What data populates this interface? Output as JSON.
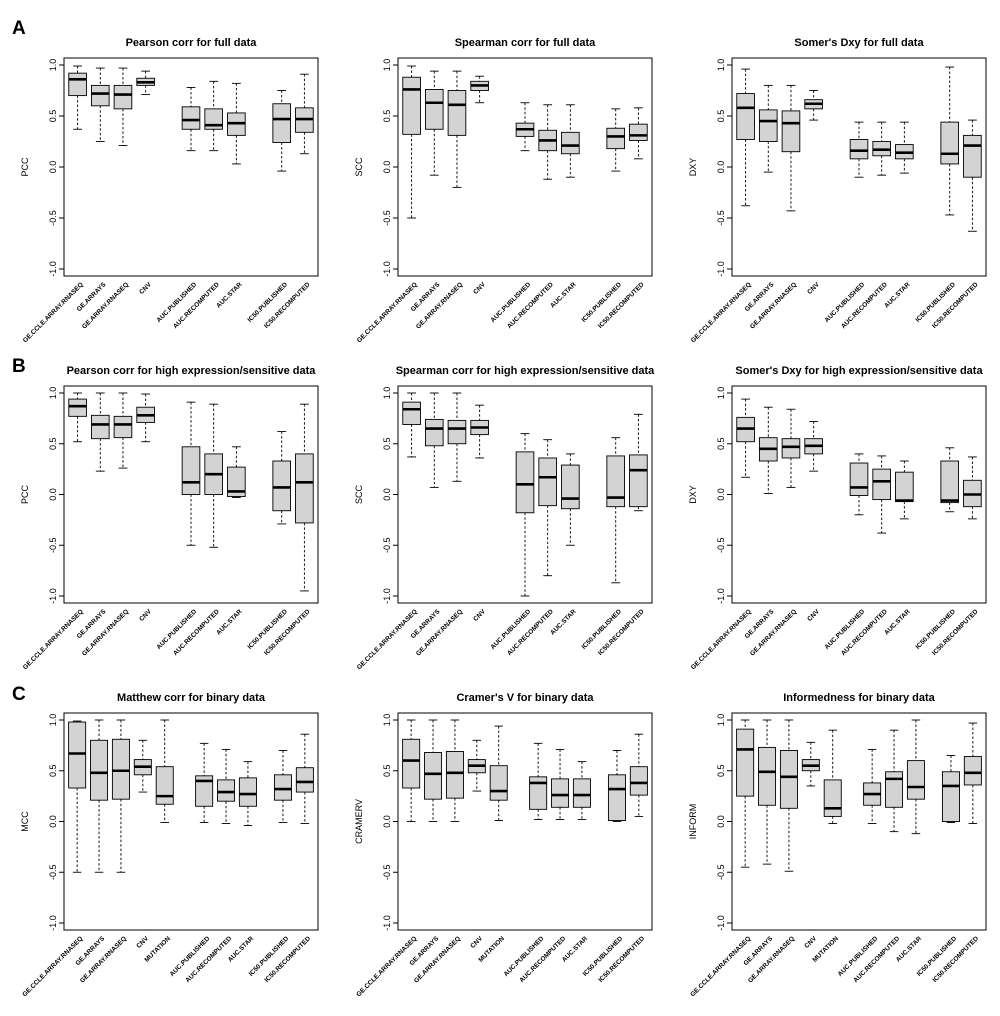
{
  "panel_letters": [
    "A",
    "B",
    "C"
  ],
  "chart_data": [
    {
      "type": "box",
      "panel": "A",
      "title": "Pearson corr for full data",
      "ylabel": "PCC",
      "ylim": [
        -1,
        1
      ],
      "yticks": [
        -1.0,
        -0.5,
        0.0,
        0.5,
        1.0
      ],
      "grid": false,
      "legend": "none",
      "categories": [
        "GE.CCLE.ARRAY.RNASEQ",
        "GE.ARRAYS",
        "GE.ARRAY.RNASEQ",
        "CNV",
        "AUC.PUBLISHED",
        "AUC.RECOMPUTED",
        "AUC.STAR",
        "IC50.PUBLISHED",
        "IC50.RECOMPUTED"
      ],
      "positions": [
        1,
        2,
        3,
        4,
        6,
        7,
        8,
        10,
        11
      ],
      "boxes": [
        {
          "min": 0.37,
          "q1": 0.7,
          "median": 0.86,
          "q3": 0.92,
          "max": 0.99
        },
        {
          "min": 0.25,
          "q1": 0.6,
          "median": 0.72,
          "q3": 0.8,
          "max": 0.97
        },
        {
          "min": 0.21,
          "q1": 0.57,
          "median": 0.71,
          "q3": 0.8,
          "max": 0.97
        },
        {
          "min": 0.71,
          "q1": 0.8,
          "median": 0.83,
          "q3": 0.87,
          "max": 0.94
        },
        {
          "min": 0.16,
          "q1": 0.37,
          "median": 0.46,
          "q3": 0.59,
          "max": 0.78
        },
        {
          "min": 0.16,
          "q1": 0.37,
          "median": 0.41,
          "q3": 0.57,
          "max": 0.84
        },
        {
          "min": 0.03,
          "q1": 0.31,
          "median": 0.43,
          "q3": 0.53,
          "max": 0.82
        },
        {
          "min": -0.04,
          "q1": 0.24,
          "median": 0.47,
          "q3": 0.62,
          "max": 0.75
        },
        {
          "min": 0.13,
          "q1": 0.34,
          "median": 0.47,
          "q3": 0.58,
          "max": 0.91
        }
      ]
    },
    {
      "type": "box",
      "panel": "A",
      "title": "Spearman corr for full data",
      "ylabel": "SCC",
      "ylim": [
        -1,
        1
      ],
      "yticks": [
        -1.0,
        -0.5,
        0.0,
        0.5,
        1.0
      ],
      "grid": false,
      "legend": "none",
      "categories": [
        "GE.CCLE.ARRAY.RNASEQ",
        "GE.ARRAYS",
        "GE.ARRAY.RNASEQ",
        "CNV",
        "AUC.PUBLISHED",
        "AUC.RECOMPUTED",
        "AUC.STAR",
        "IC50.PUBLISHED",
        "IC50.RECOMPUTED"
      ],
      "positions": [
        1,
        2,
        3,
        4,
        6,
        7,
        8,
        10,
        11
      ],
      "boxes": [
        {
          "min": -0.5,
          "q1": 0.32,
          "median": 0.76,
          "q3": 0.88,
          "max": 0.99
        },
        {
          "min": -0.08,
          "q1": 0.37,
          "median": 0.63,
          "q3": 0.76,
          "max": 0.94
        },
        {
          "min": -0.2,
          "q1": 0.31,
          "median": 0.61,
          "q3": 0.75,
          "max": 0.94
        },
        {
          "min": 0.63,
          "q1": 0.75,
          "median": 0.8,
          "q3": 0.84,
          "max": 0.89
        },
        {
          "min": 0.16,
          "q1": 0.3,
          "median": 0.37,
          "q3": 0.43,
          "max": 0.63
        },
        {
          "min": -0.12,
          "q1": 0.16,
          "median": 0.26,
          "q3": 0.36,
          "max": 0.61
        },
        {
          "min": -0.1,
          "q1": 0.13,
          "median": 0.21,
          "q3": 0.34,
          "max": 0.61
        },
        {
          "min": -0.04,
          "q1": 0.18,
          "median": 0.3,
          "q3": 0.38,
          "max": 0.57
        },
        {
          "min": 0.08,
          "q1": 0.26,
          "median": 0.31,
          "q3": 0.42,
          "max": 0.58
        }
      ]
    },
    {
      "type": "box",
      "panel": "A",
      "title": "Somer's Dxy for full data",
      "ylabel": "DXY",
      "ylim": [
        -1,
        1
      ],
      "yticks": [
        -1.0,
        -0.5,
        0.0,
        0.5,
        1.0
      ],
      "grid": false,
      "legend": "none",
      "categories": [
        "GE.CCLE.ARRAY.RNASEQ",
        "GE.ARRAYS",
        "GE.ARRAY.RNASEQ",
        "CNV",
        "AUC.PUBLISHED",
        "AUC.RECOMPUTED",
        "AUC.STAR",
        "IC50.PUBLISHED",
        "IC50.RECOMPUTED"
      ],
      "positions": [
        1,
        2,
        3,
        4,
        6,
        7,
        8,
        10,
        11
      ],
      "boxes": [
        {
          "min": -0.38,
          "q1": 0.27,
          "median": 0.58,
          "q3": 0.72,
          "max": 0.96
        },
        {
          "min": -0.05,
          "q1": 0.25,
          "median": 0.45,
          "q3": 0.56,
          "max": 0.8
        },
        {
          "min": -0.43,
          "q1": 0.15,
          "median": 0.43,
          "q3": 0.55,
          "max": 0.8
        },
        {
          "min": 0.46,
          "q1": 0.57,
          "median": 0.62,
          "q3": 0.66,
          "max": 0.75
        },
        {
          "min": -0.1,
          "q1": 0.08,
          "median": 0.16,
          "q3": 0.27,
          "max": 0.44
        },
        {
          "min": -0.08,
          "q1": 0.11,
          "median": 0.17,
          "q3": 0.25,
          "max": 0.44
        },
        {
          "min": -0.06,
          "q1": 0.08,
          "median": 0.14,
          "q3": 0.22,
          "max": 0.44
        },
        {
          "min": -0.47,
          "q1": 0.03,
          "median": 0.13,
          "q3": 0.44,
          "max": 0.98
        },
        {
          "min": -0.63,
          "q1": -0.1,
          "median": 0.21,
          "q3": 0.31,
          "max": 0.46
        }
      ]
    },
    {
      "type": "box",
      "panel": "B",
      "title": "Pearson corr for high expression/sensitive data",
      "ylabel": "PCC",
      "ylim": [
        -1,
        1
      ],
      "yticks": [
        -1.0,
        -0.5,
        0.0,
        0.5,
        1.0
      ],
      "grid": false,
      "legend": "none",
      "categories": [
        "GE.CCLE.ARRAY.RNASEQ",
        "GE.ARRAYS",
        "GE.ARRAY.RNASEQ",
        "CNV",
        "AUC.PUBLISHED",
        "AUC.RECOMPUTED",
        "AUC.STAR",
        "IC50.PUBLISHED",
        "IC50.RECOMPUTED"
      ],
      "positions": [
        1,
        2,
        3,
        4,
        6,
        7,
        8,
        10,
        11
      ],
      "boxes": [
        {
          "min": 0.52,
          "q1": 0.77,
          "median": 0.87,
          "q3": 0.94,
          "max": 1.0
        },
        {
          "min": 0.23,
          "q1": 0.55,
          "median": 0.69,
          "q3": 0.78,
          "max": 1.0
        },
        {
          "min": 0.26,
          "q1": 0.56,
          "median": 0.69,
          "q3": 0.77,
          "max": 1.0
        },
        {
          "min": 0.52,
          "q1": 0.71,
          "median": 0.78,
          "q3": 0.86,
          "max": 0.99
        },
        {
          "min": -0.5,
          "q1": 0.0,
          "median": 0.12,
          "q3": 0.47,
          "max": 0.91
        },
        {
          "min": -0.52,
          "q1": 0.0,
          "median": 0.2,
          "q3": 0.4,
          "max": 0.89
        },
        {
          "min": -0.03,
          "q1": -0.02,
          "median": 0.03,
          "q3": 0.27,
          "max": 0.47
        },
        {
          "min": -0.29,
          "q1": -0.16,
          "median": 0.07,
          "q3": 0.33,
          "max": 0.62
        },
        {
          "min": -0.95,
          "q1": -0.28,
          "median": 0.12,
          "q3": 0.4,
          "max": 0.89
        }
      ]
    },
    {
      "type": "box",
      "panel": "B",
      "title": "Spearman corr for high expression/sensitive data",
      "ylabel": "SCC",
      "ylim": [
        -1,
        1
      ],
      "yticks": [
        -1.0,
        -0.5,
        0.0,
        0.5,
        1.0
      ],
      "grid": false,
      "legend": "none",
      "categories": [
        "GE.CCLE.ARRAY.RNASEQ",
        "GE.ARRAYS",
        "GE.ARRAY.RNASEQ",
        "CNV",
        "AUC.PUBLISHED",
        "AUC.RECOMPUTED",
        "AUC.STAR",
        "IC50.PUBLISHED",
        "IC50.RECOMPUTED"
      ],
      "positions": [
        1,
        2,
        3,
        4,
        6,
        7,
        8,
        10,
        11
      ],
      "boxes": [
        {
          "min": 0.37,
          "q1": 0.69,
          "median": 0.84,
          "q3": 0.91,
          "max": 1.0
        },
        {
          "min": 0.07,
          "q1": 0.48,
          "median": 0.65,
          "q3": 0.74,
          "max": 1.0
        },
        {
          "min": 0.13,
          "q1": 0.5,
          "median": 0.65,
          "q3": 0.73,
          "max": 1.0
        },
        {
          "min": 0.36,
          "q1": 0.59,
          "median": 0.66,
          "q3": 0.73,
          "max": 0.88
        },
        {
          "min": -1.0,
          "q1": -0.18,
          "median": 0.1,
          "q3": 0.42,
          "max": 0.6
        },
        {
          "min": -0.8,
          "q1": -0.11,
          "median": 0.17,
          "q3": 0.36,
          "max": 0.54
        },
        {
          "min": -0.5,
          "q1": -0.14,
          "median": -0.04,
          "q3": 0.29,
          "max": 0.4
        },
        {
          "min": -0.87,
          "q1": -0.12,
          "median": -0.03,
          "q3": 0.38,
          "max": 0.56
        },
        {
          "min": -0.16,
          "q1": -0.12,
          "median": 0.24,
          "q3": 0.39,
          "max": 0.79
        }
      ]
    },
    {
      "type": "box",
      "panel": "B",
      "title": "Somer's Dxy for high expression/sensitive data",
      "ylabel": "DXY",
      "ylim": [
        -1,
        1
      ],
      "yticks": [
        -1.0,
        -0.5,
        0.0,
        0.5,
        1.0
      ],
      "grid": false,
      "legend": "none",
      "categories": [
        "GE.CCLE.ARRAY.RNASEQ",
        "GE.ARRAYS",
        "GE.ARRAY.RNASEQ",
        "CNV",
        "AUC.PUBLISHED",
        "AUC.RECOMPUTED",
        "AUC.STAR",
        "IC50.PUBLISHED",
        "IC50.RECOMPUTED"
      ],
      "positions": [
        1,
        2,
        3,
        4,
        6,
        7,
        8,
        10,
        11
      ],
      "boxes": [
        {
          "min": 0.17,
          "q1": 0.52,
          "median": 0.65,
          "q3": 0.76,
          "max": 0.94
        },
        {
          "min": 0.01,
          "q1": 0.33,
          "median": 0.45,
          "q3": 0.56,
          "max": 0.86
        },
        {
          "min": 0.07,
          "q1": 0.36,
          "median": 0.47,
          "q3": 0.55,
          "max": 0.84
        },
        {
          "min": 0.23,
          "q1": 0.4,
          "median": 0.48,
          "q3": 0.55,
          "max": 0.72
        },
        {
          "min": -0.2,
          "q1": -0.01,
          "median": 0.07,
          "q3": 0.31,
          "max": 0.4
        },
        {
          "min": -0.38,
          "q1": -0.05,
          "median": 0.13,
          "q3": 0.25,
          "max": 0.38
        },
        {
          "min": -0.24,
          "q1": -0.07,
          "median": -0.06,
          "q3": 0.22,
          "max": 0.33
        },
        {
          "min": -0.17,
          "q1": -0.08,
          "median": -0.06,
          "q3": 0.33,
          "max": 0.46
        },
        {
          "min": -0.24,
          "q1": -0.12,
          "median": 0.0,
          "q3": 0.14,
          "max": 0.37
        }
      ]
    },
    {
      "type": "box",
      "panel": "C",
      "title": "Matthew corr for binary data",
      "ylabel": "MCC",
      "ylim": [
        -1,
        1
      ],
      "yticks": [
        -1.0,
        -0.5,
        0.0,
        0.5,
        1.0
      ],
      "grid": false,
      "legend": "none",
      "categories": [
        "GE.CCLE.ARRAY.RNASEQ",
        "GE.ARRAYS",
        "GE.ARRAY.RNASEQ",
        "CNV",
        "MUTATION",
        "AUC.PUBLISHED",
        "AUC.RECOMPUTED",
        "AUC.STAR",
        "IC50.PUBLISHED",
        "IC50.RECOMPUTED"
      ],
      "positions": [
        1,
        2,
        3,
        4,
        5,
        6.8,
        7.8,
        8.8,
        10.4,
        11.4
      ],
      "boxes": [
        {
          "min": -0.5,
          "q1": 0.33,
          "median": 0.67,
          "q3": 0.98,
          "max": 0.99
        },
        {
          "min": -0.5,
          "q1": 0.21,
          "median": 0.48,
          "q3": 0.8,
          "max": 1.0
        },
        {
          "min": -0.5,
          "q1": 0.22,
          "median": 0.5,
          "q3": 0.81,
          "max": 1.0
        },
        {
          "min": 0.29,
          "q1": 0.46,
          "median": 0.54,
          "q3": 0.61,
          "max": 0.8
        },
        {
          "min": -0.01,
          "q1": 0.17,
          "median": 0.25,
          "q3": 0.54,
          "max": 1.0
        },
        {
          "min": -0.01,
          "q1": 0.15,
          "median": 0.4,
          "q3": 0.45,
          "max": 0.77
        },
        {
          "min": -0.02,
          "q1": 0.2,
          "median": 0.29,
          "q3": 0.41,
          "max": 0.71
        },
        {
          "min": -0.04,
          "q1": 0.15,
          "median": 0.27,
          "q3": 0.43,
          "max": 0.59
        },
        {
          "min": -0.01,
          "q1": 0.21,
          "median": 0.32,
          "q3": 0.46,
          "max": 0.7
        },
        {
          "min": -0.02,
          "q1": 0.29,
          "median": 0.39,
          "q3": 0.53,
          "max": 0.86
        }
      ]
    },
    {
      "type": "box",
      "panel": "C",
      "title": "Cramer's V for binary data",
      "ylabel": "CRAMERV",
      "ylim": [
        -1,
        1
      ],
      "yticks": [
        -1.0,
        -0.5,
        0.0,
        0.5,
        1.0
      ],
      "grid": false,
      "legend": "none",
      "categories": [
        "GE.CCLE.ARRAY.RNASEQ",
        "GE.ARRAYS",
        "GE.ARRAY.RNASEQ",
        "CNV",
        "MUTATION",
        "AUC.PUBLISHED",
        "AUC.RECOMPUTED",
        "AUC.STAR",
        "IC50.PUBLISHED",
        "IC50.RECOMPUTED"
      ],
      "positions": [
        1,
        2,
        3,
        4,
        5,
        6.8,
        7.8,
        8.8,
        10.4,
        11.4
      ],
      "boxes": [
        {
          "min": 0.0,
          "q1": 0.33,
          "median": 0.6,
          "q3": 0.81,
          "max": 1.0
        },
        {
          "min": 0.0,
          "q1": 0.22,
          "median": 0.47,
          "q3": 0.68,
          "max": 1.0
        },
        {
          "min": 0.0,
          "q1": 0.23,
          "median": 0.48,
          "q3": 0.69,
          "max": 1.0
        },
        {
          "min": 0.3,
          "q1": 0.48,
          "median": 0.55,
          "q3": 0.61,
          "max": 0.8
        },
        {
          "min": 0.01,
          "q1": 0.21,
          "median": 0.3,
          "q3": 0.55,
          "max": 0.94
        },
        {
          "min": 0.02,
          "q1": 0.12,
          "median": 0.38,
          "q3": 0.44,
          "max": 0.77
        },
        {
          "min": 0.02,
          "q1": 0.14,
          "median": 0.26,
          "q3": 0.42,
          "max": 0.71
        },
        {
          "min": 0.02,
          "q1": 0.14,
          "median": 0.26,
          "q3": 0.42,
          "max": 0.59
        },
        {
          "min": 0.0,
          "q1": 0.01,
          "median": 0.32,
          "q3": 0.46,
          "max": 0.7
        },
        {
          "min": 0.05,
          "q1": 0.26,
          "median": 0.38,
          "q3": 0.54,
          "max": 0.86
        }
      ]
    },
    {
      "type": "box",
      "panel": "C",
      "title": "Informedness for binary data",
      "ylabel": "INFORM",
      "ylim": [
        -1,
        1
      ],
      "yticks": [
        -1.0,
        -0.5,
        0.0,
        0.5,
        1.0
      ],
      "grid": false,
      "legend": "none",
      "categories": [
        "GE.CCLE.ARRAY.RNASEQ",
        "GE.ARRAYS",
        "GE.ARRAY.RNASEQ",
        "CNV",
        "MUTATION",
        "AUC.PUBLISHED",
        "AUC.RECOMPUTED",
        "AUC.STAR",
        "IC50.PUBLISHED",
        "IC50.RECOMPUTED"
      ],
      "positions": [
        1,
        2,
        3,
        4,
        5,
        6.8,
        7.8,
        8.8,
        10.4,
        11.4
      ],
      "boxes": [
        {
          "min": -0.45,
          "q1": 0.25,
          "median": 0.71,
          "q3": 0.91,
          "max": 1.0
        },
        {
          "min": -0.42,
          "q1": 0.16,
          "median": 0.49,
          "q3": 0.73,
          "max": 1.0
        },
        {
          "min": -0.49,
          "q1": 0.13,
          "median": 0.44,
          "q3": 0.7,
          "max": 1.0
        },
        {
          "min": 0.35,
          "q1": 0.5,
          "median": 0.55,
          "q3": 0.61,
          "max": 0.78
        },
        {
          "min": -0.02,
          "q1": 0.05,
          "median": 0.13,
          "q3": 0.41,
          "max": 0.9
        },
        {
          "min": -0.02,
          "q1": 0.16,
          "median": 0.27,
          "q3": 0.38,
          "max": 0.71
        },
        {
          "min": -0.1,
          "q1": 0.14,
          "median": 0.42,
          "q3": 0.49,
          "max": 0.9
        },
        {
          "min": -0.12,
          "q1": 0.22,
          "median": 0.34,
          "q3": 0.6,
          "max": 1.0
        },
        {
          "min": -0.01,
          "q1": 0.0,
          "median": 0.35,
          "q3": 0.49,
          "max": 0.65
        },
        {
          "min": -0.02,
          "q1": 0.36,
          "median": 0.48,
          "q3": 0.64,
          "max": 0.97
        }
      ]
    }
  ],
  "colors": {
    "box_fill": "#d3d3d3",
    "stroke": "#000000",
    "background": "#ffffff"
  }
}
